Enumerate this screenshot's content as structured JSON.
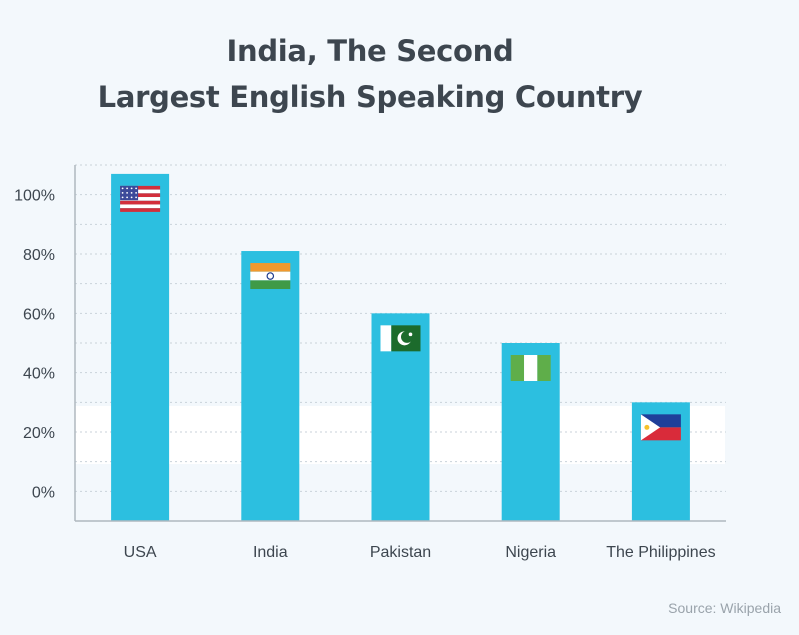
{
  "title_lines": [
    "India, The Second",
    "Largest English Speaking Country"
  ],
  "source": "Source: Wikipedia",
  "colors": {
    "bar": "#2cbfe0",
    "text": "#3d464f",
    "grid": "#c9d2d9",
    "axis": "#b0b8bf",
    "background": "#f3f8fc"
  },
  "chart_data": {
    "type": "bar",
    "title": "India, The Second Largest English Speaking Country",
    "categories": [
      "USA",
      "India",
      "Pakistan",
      "Nigeria",
      "The Philippines"
    ],
    "values": [
      107,
      81,
      60,
      50,
      30
    ],
    "flags": [
      "usa-flag-icon",
      "india-flag-icon",
      "pakistan-flag-icon",
      "nigeria-flag-icon",
      "philippines-flag-icon"
    ],
    "yticks": [
      0,
      20,
      40,
      60,
      80,
      100
    ],
    "ytick_labels": [
      "0%",
      "20%",
      "40%",
      "60%",
      "80%",
      "100%"
    ],
    "ylim": [
      -10,
      110
    ],
    "grid": true,
    "xlabel": "",
    "ylabel": ""
  }
}
